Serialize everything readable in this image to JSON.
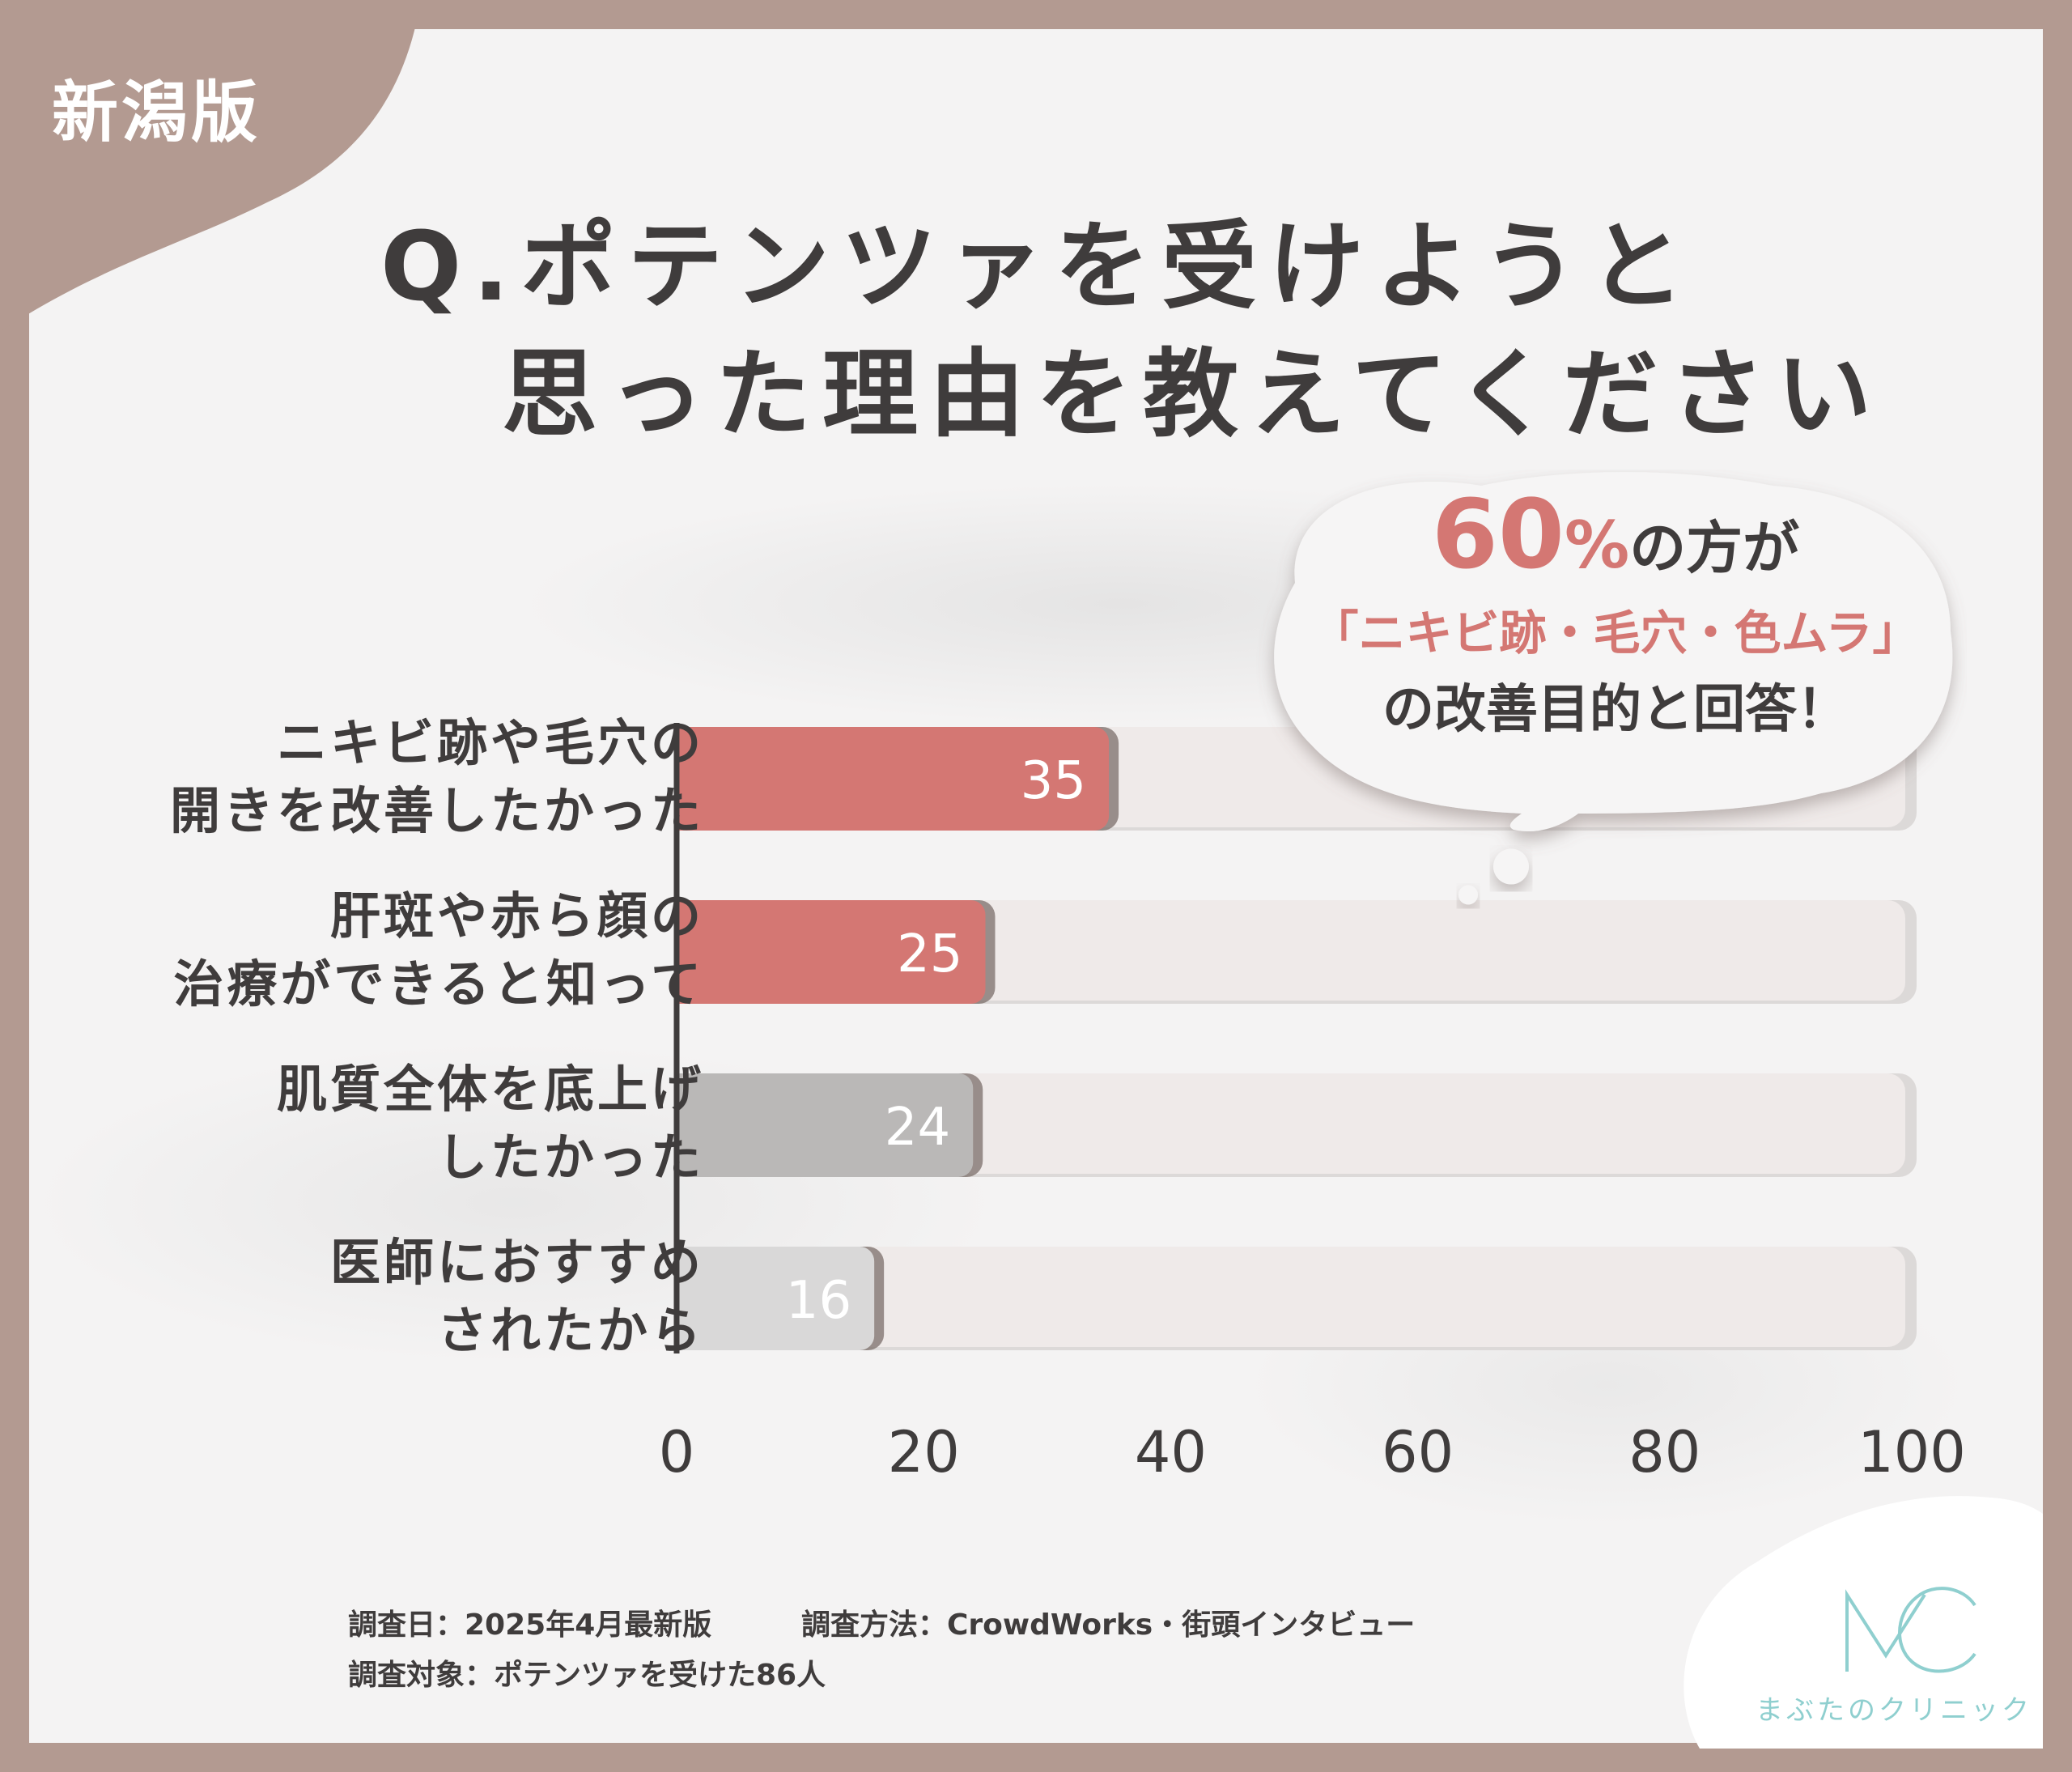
{
  "region_tag": "新潟版",
  "title": {
    "line1": "Q.ポテンツァを受けようと",
    "line2": "思った理由を教えてください"
  },
  "callout": {
    "percent": "60",
    "percent_unit": "%",
    "line1_suffix": "の方が",
    "line2": "「ニキビ跡・毛穴・色ムラ」",
    "line3": "の改善目的と回答！"
  },
  "chart_data": {
    "type": "bar",
    "orientation": "horizontal",
    "categories": [
      [
        "ニキビ跡や毛穴の",
        "開きを改善したかった"
      ],
      [
        "肝斑や赤ら顔の",
        "治療ができると知って"
      ],
      [
        "肌質全体を底上げ",
        "したかった"
      ],
      [
        "医師におすすめ",
        "されたから"
      ]
    ],
    "values": [
      35,
      25,
      24,
      16
    ],
    "data_labels": [
      "35",
      "25",
      "24",
      "16"
    ],
    "bar_colors": [
      "#d47773",
      "#d47773",
      "#bab8b7",
      "#d9d8d8"
    ],
    "track_color": "#efeae9",
    "xlim": [
      0,
      100
    ],
    "x_ticks": [
      "0",
      "20",
      "40",
      "60",
      "80",
      "100"
    ],
    "xlabel": "",
    "ylabel": "",
    "grid": false,
    "legend": "none"
  },
  "footer": {
    "survey_date": "調査日：2025年4月最新版",
    "survey_method": "調査方法：CrowdWorks・街頭インタビュー",
    "survey_target": "調査対象：ポテンツァを受けた86人"
  },
  "logo": {
    "mark": "MC",
    "text": "まぶたのクリニック",
    "color": "#8fcfcf"
  },
  "colors": {
    "frame": "#b39a91",
    "accent": "#d47773",
    "text": "#3f3c3c"
  }
}
